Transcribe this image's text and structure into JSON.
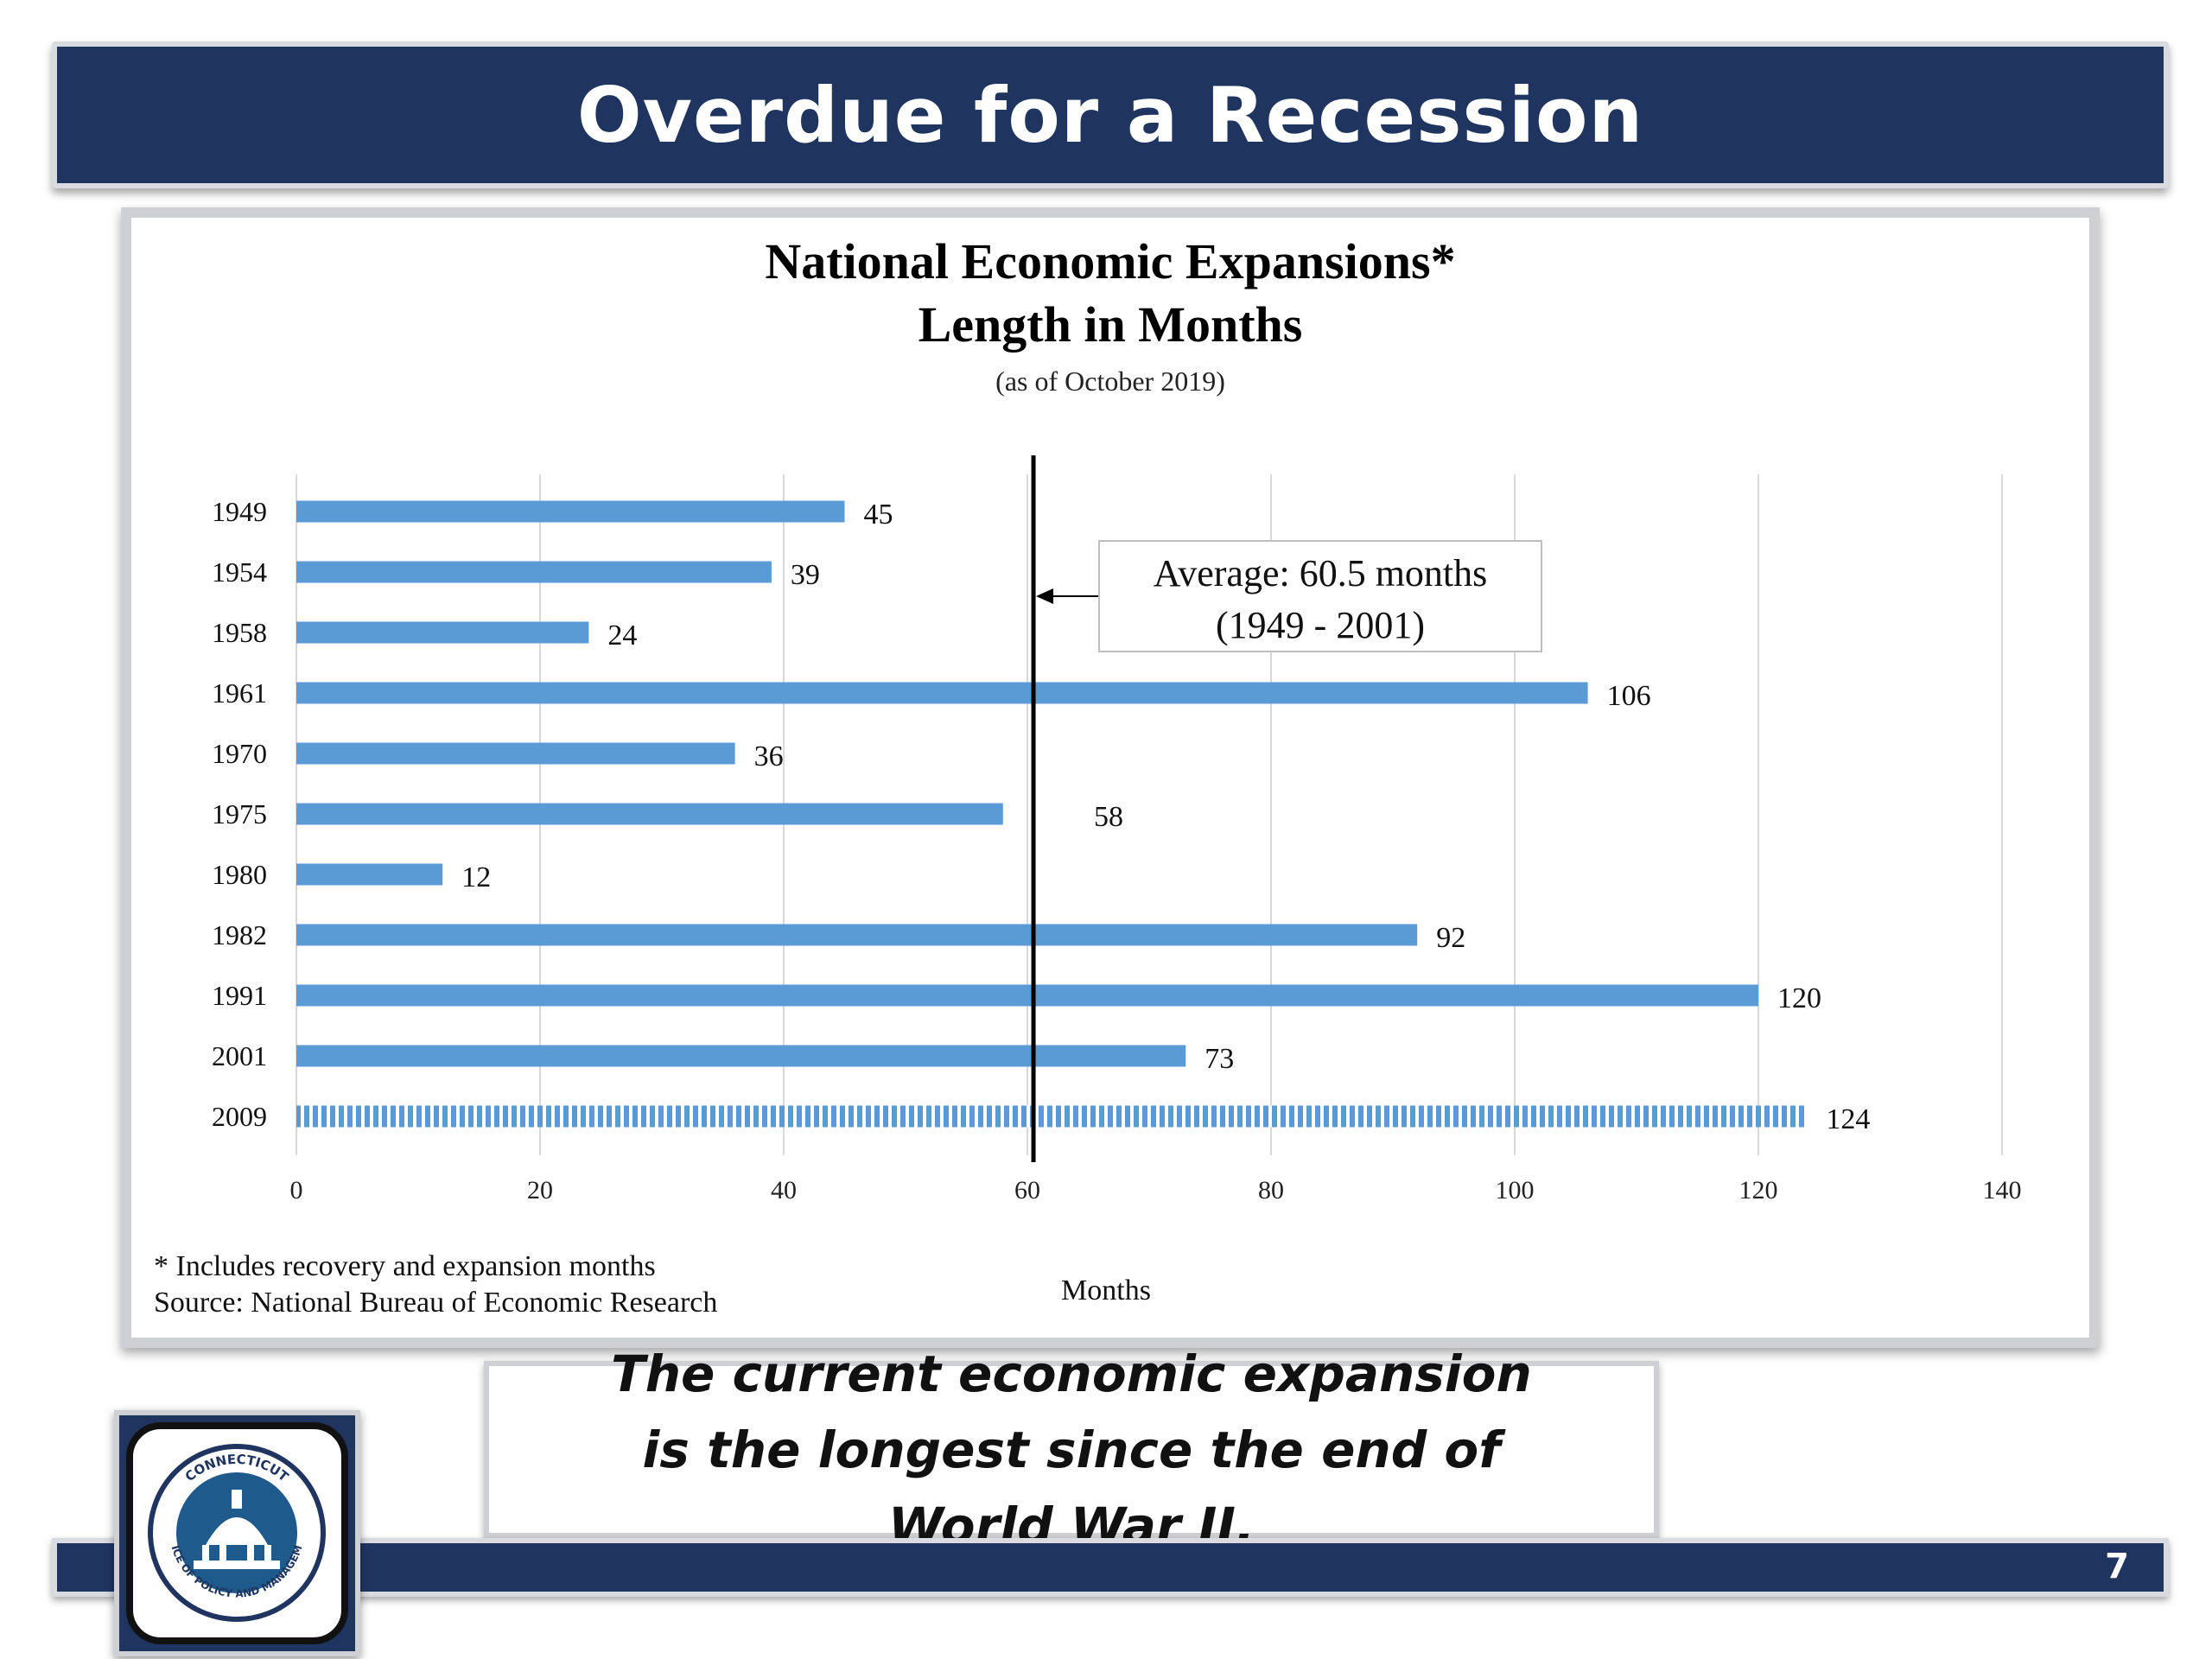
{
  "slide": {
    "title": "Overdue for a Recession",
    "caption": "The current economic expansion is the longest since the end of World War II.",
    "page_number": "7",
    "logo_text": "CONNECTICUT OFFICE OF POLICY AND MANAGEMENT"
  },
  "chart_data": {
    "type": "bar",
    "orientation": "horizontal",
    "title_line1": "National Economic Expansions*",
    "title_line2": "Length in Months",
    "subtitle": "(as of October 2019)",
    "xlabel": "Months",
    "ylabel": "",
    "xlim": [
      0,
      140
    ],
    "xticks": [
      0,
      20,
      40,
      60,
      80,
      100,
      120,
      140
    ],
    "categories": [
      "1949",
      "1954",
      "1958",
      "1961",
      "1970",
      "1975",
      "1980",
      "1982",
      "1991",
      "2001",
      "2009"
    ],
    "values": [
      45,
      39,
      24,
      106,
      36,
      58,
      12,
      92,
      120,
      73,
      124
    ],
    "bar_color": "#5b9bd5",
    "highlight_category": "2009",
    "highlight_style": "hatched",
    "average_line": {
      "value": 60.5
    },
    "annotation": {
      "line1": "Average: 60.5 months",
      "line2": "(1949 - 2001)"
    },
    "footnote": "* Includes recovery and expansion months",
    "source": "Source: National Bureau of Economic Research",
    "grid": true,
    "legend": "none"
  },
  "colors": {
    "navy": "#1f3560",
    "bar": "#5b9bd5",
    "frame": "#cfd0d3"
  }
}
